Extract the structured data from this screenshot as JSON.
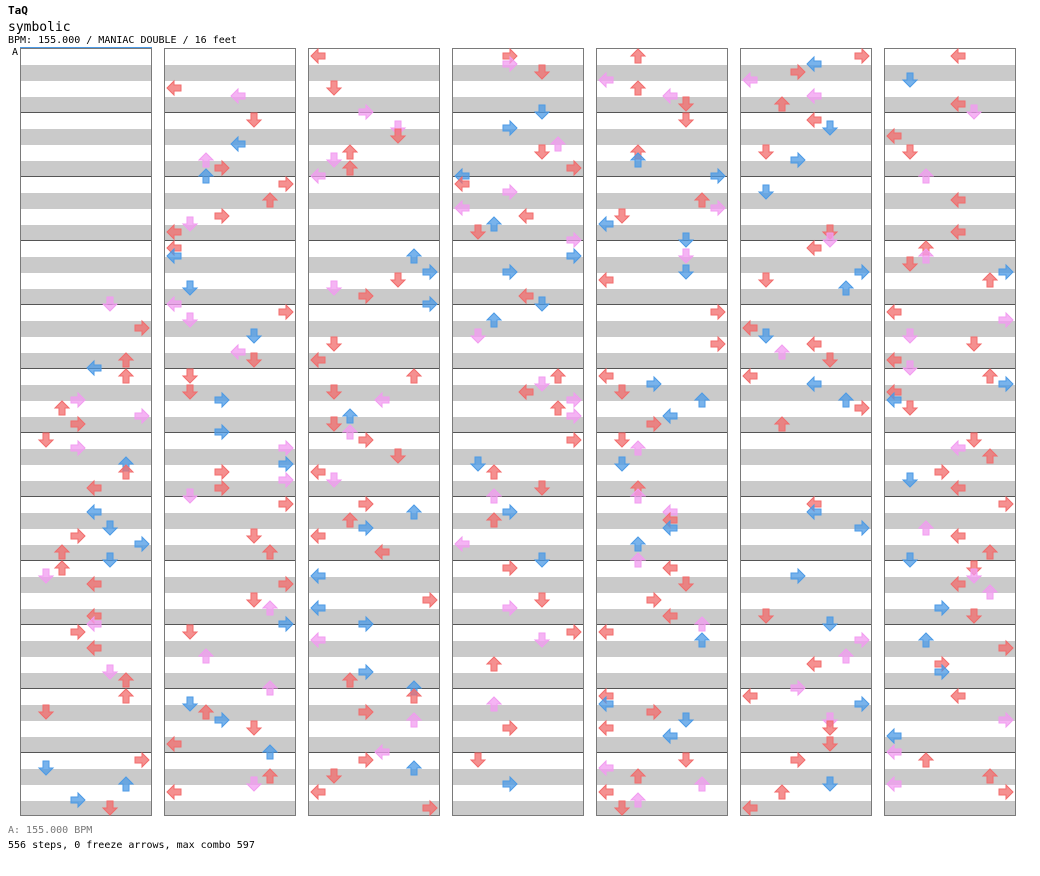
{
  "header": {
    "author": "TaQ",
    "song_title": "symbolic",
    "meta": "BPM: 155.000 / MANIAC DOUBLE / 16 feet",
    "bpm_marker": "A"
  },
  "footer": {
    "bpm_legend": "A: 155.000 BPM",
    "stats": "556 steps, 0 freeze arrows, max combo 597"
  },
  "colors": {
    "quarter_note": "#f26b6b",
    "eighth_note": "#4b9ae6",
    "sixteenth_note": "#f29bf0",
    "row_shade": "#cacaca",
    "bpm_bar": "#4b9ae6"
  },
  "chart": {
    "columns": 7,
    "measures_per_column": 12,
    "panels": 8,
    "notes": [
      [
        0,
        0,
        0,
        0,
        0,
        0,
        0,
        0,
        0,
        0,
        0,
        0,
        0,
        0,
        0,
        0,
        0,
        0,
        0,
        0,
        0,
        0,
        0,
        0,
        0,
        0,
        0,
        0,
        0,
        0,
        0,
        0,
        0,
        0,
        0,
        0,
        0,
        0,
        0,
        0,
        0,
        0,
        0,
        0,
        0,
        0,
        0,
        0,
        0,
        0,
        0,
        0,
        0,
        0,
        0,
        0,
        0,
        0,
        0,
        0,
        0,
        0,
        0,
        0,
        0,
        0,
        0,
        0,
        0,
        0,
        0,
        0,
        0,
        0,
        0,
        0,
        0,
        0,
        0,
        0,
        0,
        0,
        0,
        0,
        0,
        0,
        0,
        0,
        0,
        0,
        0,
        0,
        0,
        0,
        0,
        0
      ]
    ]
  }
}
